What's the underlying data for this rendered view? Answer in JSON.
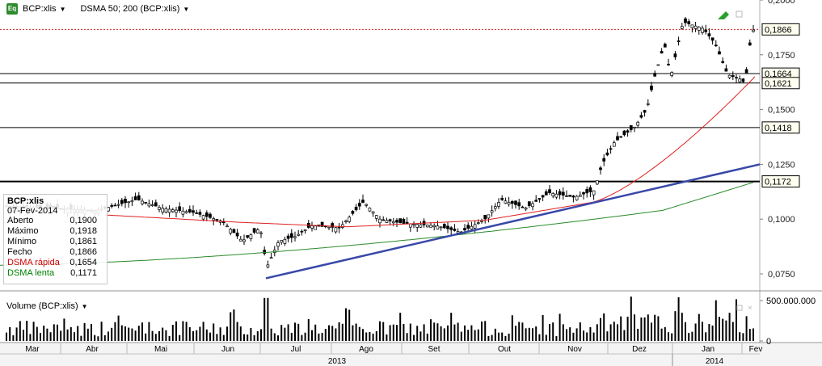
{
  "toolbar": {
    "symbol": "BCP:xlis",
    "indicator": "DSMA 50; 200 (BCP:xlis)",
    "eq_icon": "Eq"
  },
  "info_box": {
    "title": "BCP:xlis",
    "date": "07-Fev-2014",
    "rows": [
      {
        "label": "Aberto",
        "value": "0,1900"
      },
      {
        "label": "Máximo",
        "value": "0,1918"
      },
      {
        "label": "Mínimo",
        "value": "0,1861"
      },
      {
        "label": "Fecho",
        "value": "0,1866"
      },
      {
        "label": "DSMA rápida",
        "value": "0,1654",
        "color": "#cc0000"
      },
      {
        "label": "DSMA lenta",
        "value": "0,1171",
        "color": "#008000"
      }
    ]
  },
  "volume_panel": {
    "label": "Volume (BCP:xlis)",
    "ticks": [
      "500.000.000",
      "0"
    ]
  },
  "colors": {
    "up": "#ffffff",
    "down": "#000000",
    "fast_ma": "#e02020",
    "slow_ma": "#2a8a2a",
    "trendline": "#3848a8",
    "last_price": "#d02020"
  },
  "chart_data": {
    "type": "candlestick",
    "y_axis": {
      "ticks": [
        "0,2000",
        "0,1750",
        "0,1500",
        "0,1250",
        "0,1000",
        "0,0750"
      ],
      "range": [
        0.068,
        0.2
      ]
    },
    "x_axis": {
      "months": [
        "Mar",
        "Abr",
        "Mai",
        "Jun",
        "Jul",
        "Ago",
        "Set",
        "Out",
        "Nov",
        "Dez",
        "Jan",
        "Fev"
      ],
      "years": [
        "2013",
        "2014"
      ]
    },
    "horizontal_levels": [
      {
        "value": 0.1664,
        "label": "0,1664"
      },
      {
        "value": 0.1621,
        "label": "0,1621"
      },
      {
        "value": 0.1418,
        "label": "0,1418"
      },
      {
        "value": 0.1172,
        "label": "0,1172"
      }
    ],
    "last_price": {
      "value": 0.1866,
      "label": "0,1866"
    },
    "trendline": {
      "from": {
        "month": "Jun",
        "value": 0.073
      },
      "to": {
        "month": "Fev",
        "value": 0.125
      }
    },
    "fast_ma_last": 0.1654,
    "slow_ma_last": 0.1171,
    "volume_max": 500000000
  }
}
